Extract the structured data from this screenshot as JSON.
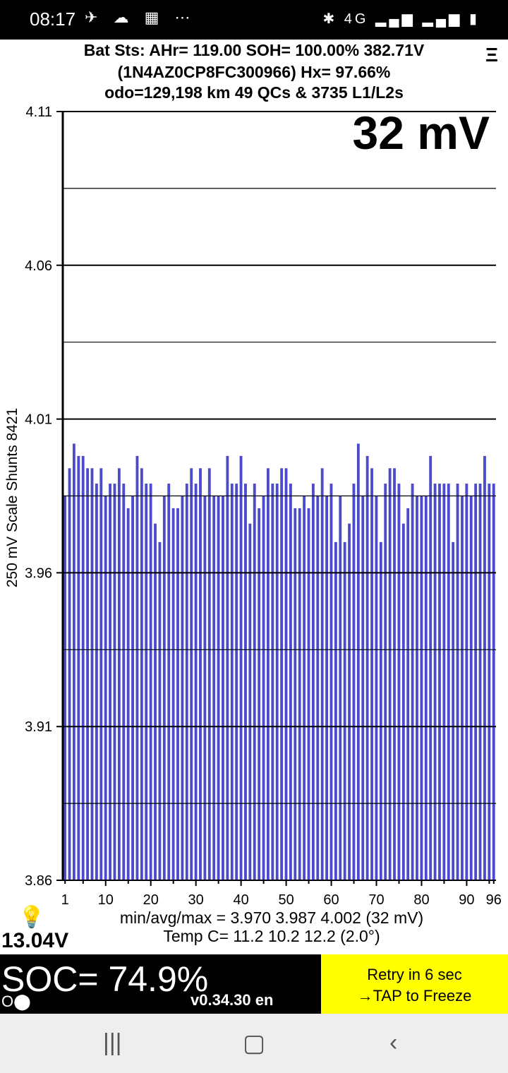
{
  "status_bar": {
    "time": "08:17",
    "left_icons": [
      "telegram-icon",
      "cloud-icon",
      "calendar-icon",
      "more-icon"
    ],
    "left_icons_text": "✈ ☁ ▦ ⋯",
    "right_icons": [
      "bluetooth-icon",
      "lte-icon",
      "signal-icon",
      "signal-icon",
      "battery-icon"
    ],
    "right_icons_text": "✱ 4G ▂▄▆ ▂▄▆ ▮"
  },
  "header": {
    "line1": "Bat Sts:  AHr= 119.00  SOH= 100.00%   382.71V",
    "line2": "(1N4AZ0CP8FC300966)   Hx= 97.66%",
    "line3": "odo=129,198 km  49 QCs & 3735 L1/L2s",
    "menu_icon": "Ξ"
  },
  "spread_label": "32 mV",
  "chart_data": {
    "type": "bar",
    "ylabel": "250 mV Scale   Shunts 8421",
    "ylim": [
      3.86,
      4.11
    ],
    "yticks": [
      "4.11",
      "4.06",
      "4.01",
      "3.96",
      "3.91",
      "3.86"
    ],
    "xticks": [
      "1",
      "10",
      "20",
      "30",
      "40",
      "50",
      "60",
      "70",
      "80",
      "90",
      "96"
    ],
    "bar_color": "#4b4bcc",
    "values": [
      3.985,
      3.994,
      4.002,
      3.998,
      3.998,
      3.994,
      3.994,
      3.989,
      3.994,
      3.985,
      3.989,
      3.989,
      3.994,
      3.989,
      3.981,
      3.985,
      3.998,
      3.994,
      3.989,
      3.989,
      3.976,
      3.97,
      3.985,
      3.989,
      3.981,
      3.981,
      3.985,
      3.989,
      3.994,
      3.989,
      3.994,
      3.985,
      3.994,
      3.985,
      3.985,
      3.985,
      3.998,
      3.989,
      3.989,
      3.998,
      3.989,
      3.976,
      3.989,
      3.981,
      3.985,
      3.994,
      3.989,
      3.989,
      3.994,
      3.994,
      3.989,
      3.981,
      3.981,
      3.985,
      3.981,
      3.989,
      3.985,
      3.994,
      3.985,
      3.989,
      3.97,
      3.985,
      3.97,
      3.976,
      3.989,
      4.002,
      3.985,
      3.998,
      3.994,
      3.985,
      3.97,
      3.989,
      3.994,
      3.994,
      3.989,
      3.976,
      3.981,
      3.989,
      3.985,
      3.985,
      3.985,
      3.998,
      3.989,
      3.989,
      3.989,
      3.989,
      3.97,
      3.989,
      3.985,
      3.989,
      3.985,
      3.989,
      3.989,
      3.998,
      3.989,
      3.989
    ]
  },
  "stats": {
    "minavgmax": "min/avg/max = 3.970 3.987 4.002  (32 mV)",
    "temp": "Temp C= 11.2  10.2  12.2  (2.0°)"
  },
  "lightbulb_icon": "💡",
  "aux_voltage": "13.04V",
  "soc": "SOC= 74.9%",
  "version": "v0.34.30 en",
  "indicator": "O⬤",
  "retry_button": {
    "line1": "Retry in 6 sec",
    "line2": "→TAP to Freeze"
  },
  "nav": {
    "recents": "|||",
    "home": "▢",
    "back": "‹"
  }
}
